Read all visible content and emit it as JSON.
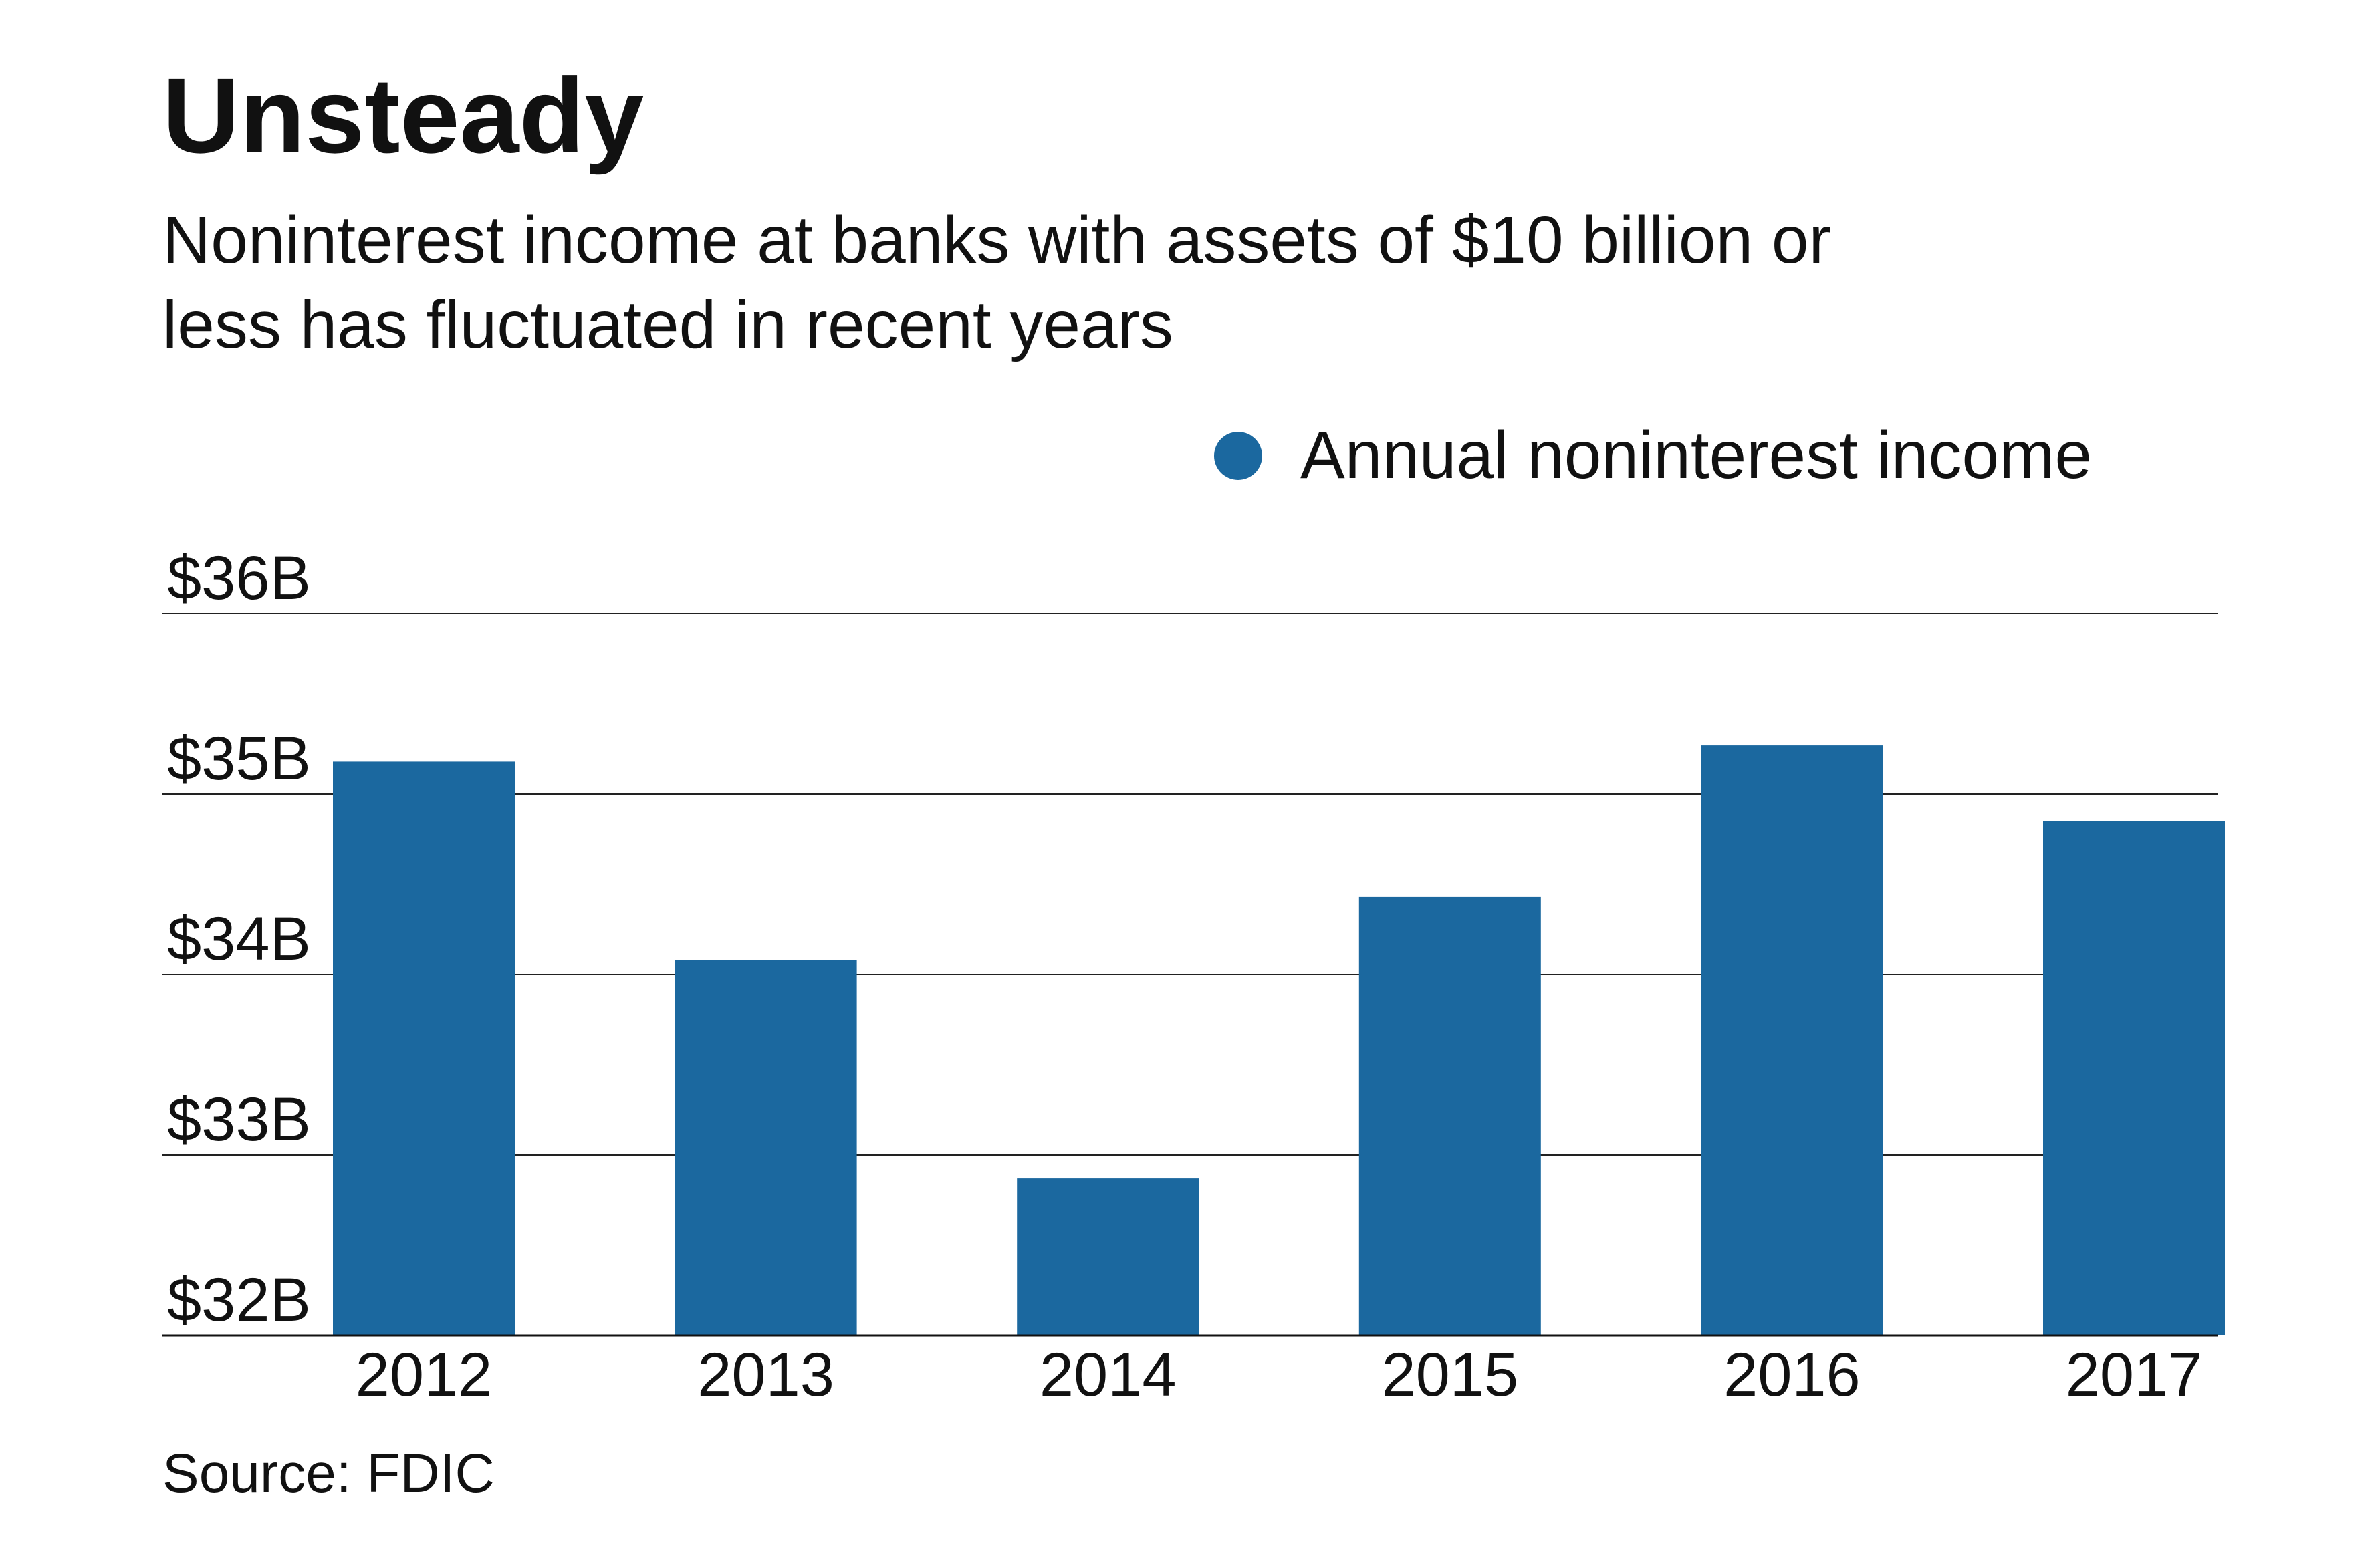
{
  "chart_data": {
    "type": "bar",
    "title": "Unsteady",
    "subtitle_lines": [
      "Noninterest income at banks with assets of $10 billion or",
      "less has fluctuated in recent years"
    ],
    "categories": [
      "2012",
      "2013",
      "2014",
      "2015",
      "2016",
      "2017"
    ],
    "series": [
      {
        "name": "Annual noninterest income",
        "values": [
          35.18,
          34.08,
          32.87,
          34.43,
          35.27,
          34.85
        ],
        "color": "#1b689f"
      }
    ],
    "ylim": [
      32,
      36
    ],
    "y_ticks": [
      {
        "value": 36,
        "label": "$36B"
      },
      {
        "value": 35,
        "label": "$35B"
      },
      {
        "value": 34,
        "label": "$34B"
      },
      {
        "value": 33,
        "label": "$33B"
      },
      {
        "value": 32,
        "label": "$32B"
      }
    ],
    "grid": true,
    "legend_position": "top-right",
    "source": "Source: FDIC"
  }
}
